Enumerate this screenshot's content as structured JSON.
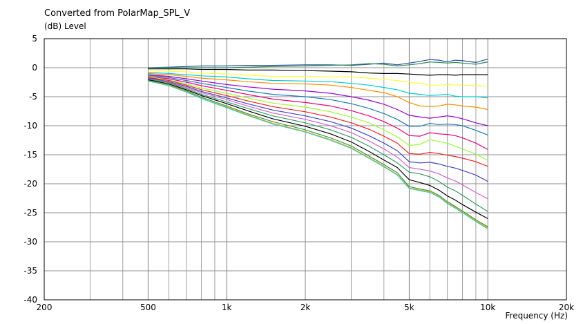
{
  "chart_data": {
    "type": "line",
    "title": "Converted from PolarMap_SPL_V",
    "ylabel": "(dB)  Level",
    "xlabel": "Frequency  (Hz)",
    "xscale": "log",
    "xlim": [
      200,
      20000
    ],
    "ylim": [
      -40,
      5
    ],
    "grid": true,
    "x_ticks": [
      {
        "value": 200,
        "label": "200"
      },
      {
        "value": 500,
        "label": "500"
      },
      {
        "value": 1000,
        "label": "1k"
      },
      {
        "value": 2000,
        "label": "2k"
      },
      {
        "value": 5000,
        "label": "5k"
      },
      {
        "value": 10000,
        "label": "10k"
      },
      {
        "value": 20000,
        "label": "20k"
      }
    ],
    "y_ticks": [
      5,
      0,
      -5,
      -10,
      -15,
      -20,
      -25,
      -30,
      -35,
      -40
    ],
    "x": [
      500,
      600,
      700,
      800,
      1000,
      1200,
      1500,
      2000,
      2500,
      3000,
      3500,
      4000,
      4500,
      5000,
      5500,
      6000,
      6500,
      7000,
      7500,
      8000,
      9000,
      10000
    ],
    "series": [
      {
        "color": "#2a4f9a",
        "values": [
          0.0,
          0.1,
          0.2,
          0.3,
          0.3,
          0.4,
          0.4,
          0.5,
          0.5,
          0.4,
          0.6,
          0.8,
          0.5,
          0.8,
          1.1,
          1.4,
          1.3,
          1.0,
          1.3,
          1.2,
          0.9,
          1.5
        ]
      },
      {
        "color": "#2e8b57",
        "values": [
          0.0,
          0.0,
          0.0,
          0.0,
          0.0,
          0.1,
          0.2,
          0.3,
          0.4,
          0.5,
          0.7,
          0.6,
          0.3,
          0.5,
          0.7,
          1.0,
          0.9,
          0.8,
          0.9,
          0.8,
          0.6,
          1.0
        ]
      },
      {
        "color": "#000000",
        "values": [
          -0.2,
          -0.2,
          -0.2,
          -0.3,
          -0.3,
          -0.4,
          -0.4,
          -0.5,
          -0.6,
          -0.7,
          -0.9,
          -1.0,
          -1.0,
          -1.1,
          -1.2,
          -1.3,
          -1.2,
          -1.2,
          -1.3,
          -1.2,
          -1.2,
          -1.2
        ]
      },
      {
        "color": "#ffff33",
        "values": [
          -0.5,
          -0.6,
          -0.7,
          -0.9,
          -1.1,
          -1.3,
          -1.5,
          -1.5,
          -1.6,
          -1.6,
          -1.8,
          -2.0,
          -2.2,
          -2.5,
          -2.7,
          -3.0,
          -3.0,
          -2.9,
          -3.0,
          -3.0,
          -3.1,
          -3.2
        ]
      },
      {
        "color": "#00cccc",
        "values": [
          -0.8,
          -1.0,
          -1.2,
          -1.4,
          -1.6,
          -1.9,
          -2.2,
          -2.3,
          -2.4,
          -2.7,
          -3.0,
          -3.4,
          -3.8,
          -4.4,
          -4.6,
          -4.8,
          -4.7,
          -4.6,
          -4.9,
          -5.0,
          -5.0,
          -5.2
        ]
      },
      {
        "color": "#ff8c00",
        "values": [
          -1.0,
          -1.2,
          -1.5,
          -1.8,
          -2.1,
          -2.4,
          -2.7,
          -2.8,
          -3.0,
          -3.4,
          -3.9,
          -4.3,
          -5.0,
          -6.0,
          -6.6,
          -6.7,
          -6.6,
          -6.3,
          -6.4,
          -6.6,
          -6.8,
          -7.2
        ]
      },
      {
        "color": "#9900cc",
        "values": [
          -1.2,
          -1.5,
          -1.9,
          -2.3,
          -2.9,
          -3.3,
          -3.7,
          -4.0,
          -4.4,
          -5.0,
          -5.6,
          -6.3,
          -7.2,
          -8.2,
          -8.5,
          -8.7,
          -8.5,
          -8.3,
          -8.5,
          -8.8,
          -9.5,
          -10.0
        ]
      },
      {
        "color": "#1f78b4",
        "values": [
          -1.3,
          -1.7,
          -2.2,
          -2.7,
          -3.4,
          -4.0,
          -4.6,
          -5.0,
          -5.5,
          -6.2,
          -7.0,
          -7.9,
          -8.9,
          -10.1,
          -10.1,
          -9.6,
          -9.8,
          -9.7,
          -9.8,
          -10.0,
          -10.8,
          -11.6
        ]
      },
      {
        "color": "#e6007e",
        "values": [
          -1.5,
          -1.9,
          -2.5,
          -3.1,
          -3.9,
          -4.6,
          -5.4,
          -6.0,
          -6.6,
          -7.4,
          -8.3,
          -9.3,
          -10.4,
          -11.7,
          -11.8,
          -11.2,
          -11.4,
          -11.5,
          -11.7,
          -12.1,
          -13.0,
          -14.1
        ]
      },
      {
        "color": "#99ff33",
        "values": [
          -1.6,
          -2.1,
          -2.8,
          -3.5,
          -4.4,
          -5.2,
          -6.1,
          -6.8,
          -7.6,
          -8.5,
          -9.5,
          -10.7,
          -11.9,
          -13.4,
          -13.2,
          -12.4,
          -12.7,
          -13.0,
          -13.5,
          -14.0,
          -14.9,
          -16.0
        ]
      },
      {
        "color": "#ee2222",
        "values": [
          -1.7,
          -2.2,
          -3.0,
          -3.8,
          -4.8,
          -5.7,
          -6.7,
          -7.6,
          -8.5,
          -9.5,
          -10.6,
          -11.8,
          -13.0,
          -14.8,
          -14.9,
          -14.6,
          -14.8,
          -15.1,
          -15.3,
          -15.6,
          -16.2,
          -17.0
        ]
      },
      {
        "color": "#4040c0",
        "values": [
          -1.8,
          -2.4,
          -3.2,
          -4.1,
          -5.2,
          -6.2,
          -7.3,
          -8.3,
          -9.3,
          -10.4,
          -11.7,
          -13.0,
          -14.3,
          -16.2,
          -16.4,
          -16.3,
          -16.6,
          -17.0,
          -17.3,
          -17.7,
          -18.5,
          -19.6
        ]
      },
      {
        "color": "#cc66cc",
        "values": [
          -1.9,
          -2.5,
          -3.4,
          -4.3,
          -5.5,
          -6.6,
          -7.8,
          -8.9,
          -10.0,
          -11.2,
          -12.6,
          -14.0,
          -15.4,
          -17.2,
          -17.5,
          -17.8,
          -18.3,
          -19.0,
          -19.5,
          -20.2,
          -21.5,
          -22.6
        ]
      },
      {
        "color": "#339966",
        "values": [
          -2.0,
          -2.6,
          -3.6,
          -4.6,
          -5.9,
          -7.0,
          -8.3,
          -9.5,
          -10.7,
          -12.0,
          -13.5,
          -15.0,
          -16.4,
          -18.0,
          -18.3,
          -18.8,
          -19.6,
          -20.6,
          -21.2,
          -22.0,
          -23.5,
          -24.8
        ]
      },
      {
        "color": "#000000",
        "values": [
          -2.1,
          -2.8,
          -3.8,
          -4.8,
          -6.2,
          -7.4,
          -8.8,
          -10.1,
          -11.4,
          -12.8,
          -14.4,
          -15.9,
          -17.2,
          -19.3,
          -19.8,
          -20.3,
          -21.1,
          -22.1,
          -22.8,
          -23.6,
          -24.9,
          -26.0
        ]
      },
      {
        "color": "#3b9c3b",
        "values": [
          -2.2,
          -2.9,
          -4.0,
          -5.1,
          -6.6,
          -7.9,
          -9.3,
          -10.7,
          -12.1,
          -13.5,
          -15.2,
          -16.7,
          -18.1,
          -20.5,
          -20.9,
          -21.2,
          -22.0,
          -23.1,
          -23.9,
          -24.7,
          -26.2,
          -27.4
        ]
      },
      {
        "color": "#ff9900",
        "values": [
          -2.3,
          -3.0,
          -4.1,
          -5.3,
          -6.8,
          -8.1,
          -9.6,
          -11.0,
          -12.4,
          -13.8,
          -15.5,
          -17.0,
          -18.4,
          -20.7,
          -21.1,
          -21.4,
          -22.2,
          -23.3,
          -24.1,
          -24.9,
          -26.4,
          -27.6
        ]
      },
      {
        "color": "#33cccc",
        "values": [
          -2.3,
          -3.1,
          -4.2,
          -5.3,
          -6.9,
          -8.2,
          -9.7,
          -11.1,
          -12.5,
          -13.9,
          -15.6,
          -17.1,
          -18.5,
          -20.8,
          -21.2,
          -21.5,
          -22.3,
          -23.4,
          -24.2,
          -25.0,
          -26.5,
          -27.8
        ]
      }
    ]
  }
}
